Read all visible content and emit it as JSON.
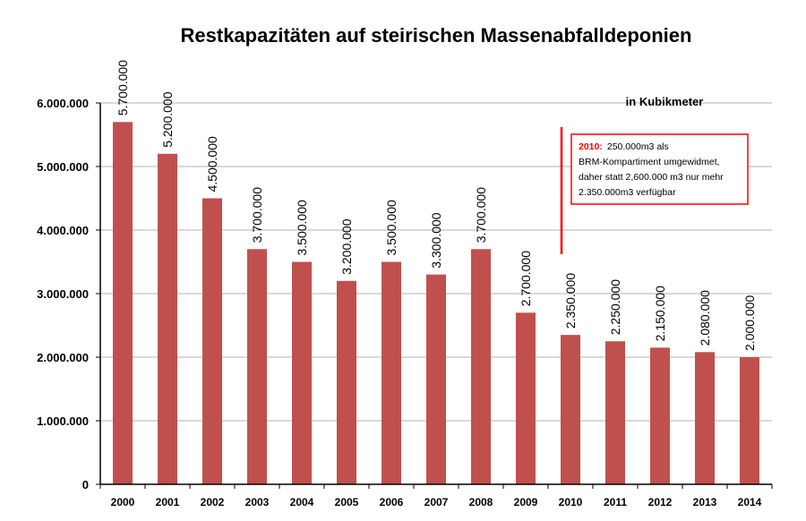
{
  "chart_data": {
    "type": "bar",
    "title": "Restkapazitäten auf steirischen Massenabfalldeponien",
    "unit_label": "in Kubikmeter",
    "categories": [
      "2000",
      "2001",
      "2002",
      "2003",
      "2004",
      "2005",
      "2006",
      "2007",
      "2008",
      "2009",
      "2010",
      "2011",
      "2012",
      "2013",
      "2014"
    ],
    "values": [
      5700000,
      5200000,
      4500000,
      3700000,
      3500000,
      3200000,
      3500000,
      3300000,
      3700000,
      2700000,
      2350000,
      2250000,
      2150000,
      2080000,
      2000000
    ],
    "value_labels": [
      "5.700.000",
      "5.200.000",
      "4.500.000",
      "3.700.000",
      "3.500.000",
      "3.200.000",
      "3.500.000",
      "3.300.000",
      "3.700.000",
      "2.700.000",
      "2.350.000",
      "2.250.000",
      "2.150.000",
      "2.080.000",
      "2.000.000"
    ],
    "ylim": [
      0,
      6000000
    ],
    "y_ticks": [
      0,
      1000000,
      2000000,
      3000000,
      4000000,
      5000000,
      6000000
    ],
    "y_tick_labels": [
      "0",
      "1.000.000",
      "2.000.000",
      "3.000.000",
      "4.000.000",
      "5.000.000",
      "6.000.000"
    ],
    "grid": true,
    "bar_color": "#c0504d",
    "annotation": {
      "year_label": "2010:",
      "line1_rest": "250.000m3 als",
      "line2": "BRM-Kompartiment umgewidmet,",
      "line3": "daher statt 2,600.000 m3 nur mehr",
      "line4": "2.350.000m3 verfügbar",
      "color": "#ff0000"
    }
  }
}
